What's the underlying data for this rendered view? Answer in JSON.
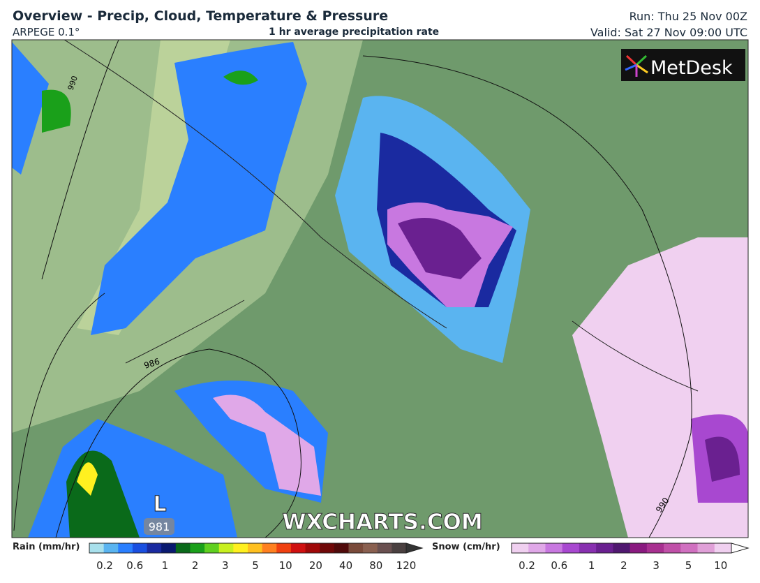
{
  "header": {
    "title": "Overview - Precip, Cloud, Temperature & Pressure",
    "model": "ARPEGE 0.1°",
    "subtitle": "1 hr average precipitation rate",
    "run": "Run: Thu 25 Nov 00Z",
    "valid": "Valid: Sat 27 Nov 09:00 UTC"
  },
  "map": {
    "isobar_labels": [
      "990",
      "986",
      "990"
    ],
    "low": {
      "symbol": "L",
      "pressure": "981"
    },
    "watermark": "WXCHARTS.COM",
    "logo": "MetDesk"
  },
  "legend": {
    "rain": {
      "title": "Rain (mm/hr)",
      "labels": [
        "0.2",
        "0.6",
        "1",
        "2",
        "3",
        "5",
        "10",
        "20",
        "40",
        "80",
        "120"
      ],
      "colors": [
        "#a8e0ec",
        "#5ab4f0",
        "#2a7fff",
        "#1a4fe0",
        "#1a2aa0",
        "#0a1a70",
        "#0a6a1a",
        "#1aa01a",
        "#60d020",
        "#c8f020",
        "#fff020",
        "#ffc020",
        "#ff8020",
        "#f04010",
        "#d01010",
        "#a00808",
        "#700808",
        "#500a0a",
        "#7a4a3a",
        "#8a6050",
        "#6a5050",
        "#4a4040"
      ]
    },
    "snow": {
      "title": "Snow (cm/hr)",
      "labels": [
        "0.2",
        "0.6",
        "1",
        "2",
        "3",
        "5",
        "10"
      ],
      "colors": [
        "#f0d0f0",
        "#e0a8e8",
        "#c878e0",
        "#a848d0",
        "#8830b0",
        "#6a2090",
        "#501870",
        "#8a1a80",
        "#a83090",
        "#c050a8",
        "#d070c0",
        "#e0a0d8",
        "#f0d0f0"
      ]
    }
  }
}
